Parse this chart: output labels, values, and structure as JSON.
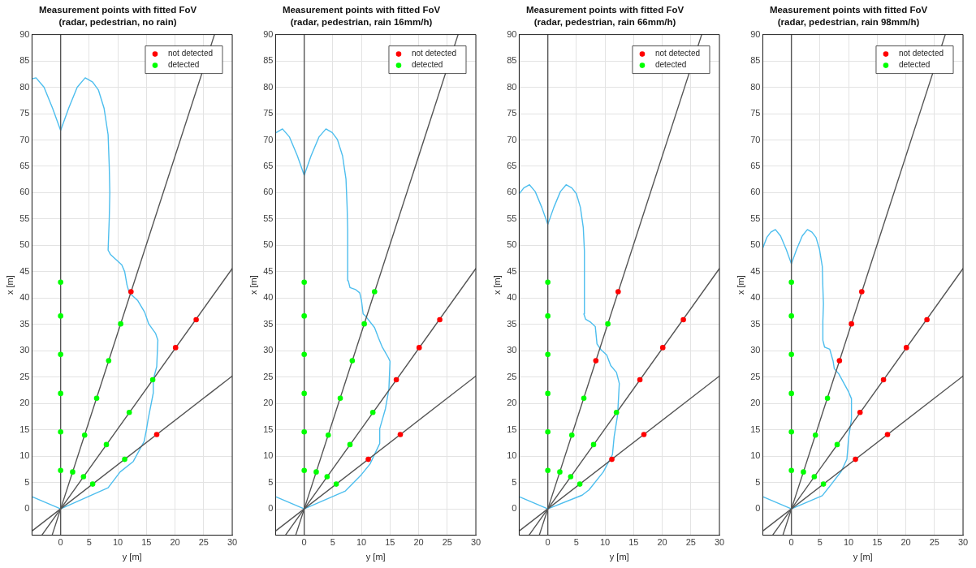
{
  "chart_data": [
    {
      "type": "scatter",
      "title": "Measurement points with fitted FoV",
      "subtitle": "(radar, pedestrian, no rain)",
      "xlabel": "y [m]",
      "ylabel": "x [m]",
      "xlim": [
        -5,
        30
      ],
      "ylim": [
        -5,
        90
      ],
      "xticks": [
        0,
        5,
        10,
        15,
        20,
        25,
        30
      ],
      "yticks": [
        0,
        5,
        10,
        15,
        20,
        25,
        30,
        35,
        40,
        45,
        50,
        55,
        60,
        65,
        70,
        75,
        80,
        85,
        90
      ],
      "grid": true,
      "legend": "top right",
      "marker": "circle",
      "series": [
        {
          "type": "line",
          "color": "#555555",
          "marker": "none",
          "x": [
            0,
            0
          ],
          "values": [
            -5,
            90
          ]
        },
        {
          "type": "line",
          "color": "#555555",
          "marker": "none",
          "x": [
            -1.49,
            26.9
          ],
          "values": [
            -5,
            90
          ]
        },
        {
          "type": "line",
          "color": "#555555",
          "marker": "none",
          "x": [
            -3.29,
            30
          ],
          "values": [
            -5,
            45.6
          ]
        },
        {
          "type": "line",
          "color": "#555555",
          "marker": "none",
          "x": [
            -5,
            30
          ],
          "values": [
            -4.2,
            25.2
          ]
        },
        {
          "type": "line",
          "color": "#4dbeee",
          "marker": "none",
          "x": [
            -5,
            0,
            8.3,
            10.4,
            12.7,
            14.6,
            15,
            15.3,
            16.2,
            16.2,
            16.8,
            17,
            16.6,
            15.4,
            14.7,
            13.5,
            12,
            11.6,
            11.2,
            10.7,
            9.7,
            8.7,
            8.3,
            8.5,
            8.6,
            8.5,
            8.3,
            7.6,
            6.6,
            5.6,
            4.3,
            2.9,
            1.4,
            0,
            -1.4,
            -2.9,
            -4.3,
            -5
          ],
          "values": [
            2.3,
            0,
            4,
            7,
            9,
            12.8,
            15,
            17,
            22,
            24.5,
            27,
            32,
            33.3,
            35.1,
            37.3,
            39.5,
            41,
            42.5,
            45,
            46.3,
            47.3,
            48.3,
            49.1,
            55,
            60,
            65,
            71,
            76,
            79.5,
            81,
            81.8,
            80,
            76,
            71.8,
            76,
            80,
            81.8,
            81.6
          ]
        },
        {
          "name": "not detected",
          "type": "scatter",
          "color": "#ff0000",
          "x": [
            12.3,
            16.8,
            20.1,
            23.7
          ],
          "values": [
            41.2,
            14.1,
            30.6,
            35.9
          ]
        },
        {
          "name": "detected",
          "type": "scatter",
          "color": "#00ff00",
          "x": [
            0,
            0,
            0,
            0,
            0,
            0,
            2.1,
            4.2,
            6.3,
            8.4,
            10.5,
            4.0,
            8.0,
            12.0,
            16.1,
            5.6,
            11.2
          ],
          "values": [
            7.3,
            14.6,
            21.9,
            29.3,
            36.6,
            43.0,
            7.0,
            14.0,
            21.0,
            28.1,
            35.1,
            6.1,
            12.2,
            18.3,
            24.5,
            4.7,
            9.4
          ]
        }
      ]
    },
    {
      "type": "scatter",
      "title": "Measurement points with fitted FoV",
      "subtitle": "(radar, pedestrian, rain 16mm/h)",
      "xlabel": "y [m]",
      "ylabel": "x [m]",
      "xlim": [
        -5,
        30
      ],
      "ylim": [
        -5,
        90
      ],
      "xticks": [
        0,
        5,
        10,
        15,
        20,
        25,
        30
      ],
      "yticks": [
        0,
        5,
        10,
        15,
        20,
        25,
        30,
        35,
        40,
        45,
        50,
        55,
        60,
        65,
        70,
        75,
        80,
        85,
        90
      ],
      "grid": true,
      "legend": "top right",
      "marker": "circle",
      "series": [
        {
          "type": "line",
          "color": "#555555",
          "marker": "none",
          "x": [
            0,
            0
          ],
          "values": [
            -5,
            90
          ]
        },
        {
          "type": "line",
          "color": "#555555",
          "marker": "none",
          "x": [
            -1.49,
            26.9
          ],
          "values": [
            -5,
            90
          ]
        },
        {
          "type": "line",
          "color": "#555555",
          "marker": "none",
          "x": [
            -3.29,
            30
          ],
          "values": [
            -5,
            45.6
          ]
        },
        {
          "type": "line",
          "color": "#555555",
          "marker": "none",
          "x": [
            -5,
            30
          ],
          "values": [
            -4.2,
            25.2
          ]
        },
        {
          "type": "line",
          "color": "#4dbeee",
          "marker": "none",
          "x": [
            -5,
            0,
            7.2,
            10,
            11.5,
            13.2,
            13.2,
            14.2,
            14.8,
            15,
            14.7,
            13.6,
            13,
            12.3,
            10.7,
            10.3,
            10,
            9.7,
            9,
            8,
            7.7,
            7.6,
            7.5,
            7.3,
            6.7,
            5.8,
            4.9,
            3.8,
            2.6,
            1.2,
            0,
            -1.2,
            -2.6,
            -3.8,
            -4.9,
            -5
          ],
          "values": [
            2.3,
            0,
            3.4,
            6.5,
            8.5,
            12.4,
            15.2,
            19,
            22.7,
            28,
            28.7,
            30.8,
            32.4,
            34.4,
            36.6,
            37,
            39.6,
            41,
            41.6,
            42,
            43.3,
            52.9,
            57.3,
            62.6,
            67,
            70.1,
            71.4,
            72.1,
            70.6,
            67,
            63.3,
            67,
            70.6,
            72.1,
            71.4,
            71.3
          ]
        },
        {
          "name": "not detected",
          "type": "scatter",
          "color": "#ff0000",
          "x": [
            16.1,
            20.1,
            23.7,
            11.2,
            16.8
          ],
          "values": [
            24.5,
            30.6,
            35.9,
            9.4,
            14.1
          ]
        },
        {
          "name": "detected",
          "type": "scatter",
          "color": "#00ff00",
          "x": [
            0,
            0,
            0,
            0,
            0,
            0,
            2.1,
            4.2,
            6.3,
            8.4,
            10.5,
            12.3,
            4.0,
            8.0,
            12.0,
            5.6
          ],
          "values": [
            7.3,
            14.6,
            21.9,
            29.3,
            36.6,
            43.0,
            7.0,
            14.0,
            21.0,
            28.1,
            35.1,
            41.2,
            6.1,
            12.2,
            18.3,
            4.7
          ]
        }
      ]
    },
    {
      "type": "scatter",
      "title": "Measurement points with fitted FoV",
      "subtitle": "(radar, pedestrian, rain 66mm/h)",
      "xlabel": "y [m]",
      "ylabel": "x [m]",
      "xlim": [
        -5,
        30
      ],
      "ylim": [
        -5,
        90
      ],
      "xticks": [
        0,
        5,
        10,
        15,
        20,
        25,
        30
      ],
      "yticks": [
        0,
        5,
        10,
        15,
        20,
        25,
        30,
        35,
        40,
        45,
        50,
        55,
        60,
        65,
        70,
        75,
        80,
        85,
        90
      ],
      "grid": true,
      "legend": "top right",
      "marker": "circle",
      "series": [
        {
          "type": "line",
          "color": "#555555",
          "marker": "none",
          "x": [
            0,
            0
          ],
          "values": [
            -5,
            90
          ]
        },
        {
          "type": "line",
          "color": "#555555",
          "marker": "none",
          "x": [
            -1.49,
            26.9
          ],
          "values": [
            -5,
            90
          ]
        },
        {
          "type": "line",
          "color": "#555555",
          "marker": "none",
          "x": [
            -3.29,
            30
          ],
          "values": [
            -5,
            45.6
          ]
        },
        {
          "type": "line",
          "color": "#555555",
          "marker": "none",
          "x": [
            -5,
            30
          ],
          "values": [
            -4.2,
            25.2
          ]
        },
        {
          "type": "line",
          "color": "#4dbeee",
          "marker": "none",
          "x": [
            -5,
            0,
            6,
            7.2,
            9.7,
            11.3,
            11.6,
            12.2,
            12.5,
            12,
            11,
            10.3,
            9.3,
            8.6,
            8.3,
            7.5,
            6.6,
            6.3,
            6.4,
            6.2,
            5.7,
            5,
            4.2,
            3.2,
            2.2,
            1.05,
            0,
            -1.05,
            -2.2,
            -3.2,
            -4.2,
            -5
          ],
          "values": [
            2.3,
            0,
            2.6,
            3.6,
            7,
            10.3,
            13.7,
            17.8,
            23.8,
            25.9,
            27.2,
            29.2,
            30.2,
            31.3,
            34.6,
            35.4,
            36,
            37,
            48.9,
            53.4,
            57.2,
            59.8,
            60.9,
            61.5,
            60.2,
            57.2,
            54,
            57.2,
            60.2,
            61.5,
            60.9,
            59.8
          ]
        },
        {
          "name": "not detected",
          "type": "scatter",
          "color": "#ff0000",
          "x": [
            8.4,
            12.3,
            16.1,
            20.1,
            23.7,
            11.2,
            16.8
          ],
          "values": [
            28.1,
            41.2,
            24.5,
            30.6,
            35.9,
            9.4,
            14.1
          ]
        },
        {
          "name": "detected",
          "type": "scatter",
          "color": "#00ff00",
          "x": [
            0,
            0,
            0,
            0,
            0,
            0,
            2.1,
            4.2,
            6.3,
            10.5,
            4.0,
            8.0,
            12.0,
            5.6
          ],
          "values": [
            7.3,
            14.6,
            21.9,
            29.3,
            36.6,
            43.0,
            7.0,
            14.0,
            21.0,
            35.1,
            6.1,
            12.2,
            18.3,
            4.7
          ]
        }
      ]
    },
    {
      "type": "scatter",
      "title": "Measurement points with fitted FoV",
      "subtitle": "(radar, pedestrian, rain 98mm/h)",
      "xlabel": "y [m]",
      "ylabel": "x [m]",
      "xlim": [
        -5,
        30
      ],
      "ylim": [
        -5,
        90
      ],
      "xticks": [
        0,
        5,
        10,
        15,
        20,
        25,
        30
      ],
      "yticks": [
        0,
        5,
        10,
        15,
        20,
        25,
        30,
        35,
        40,
        45,
        50,
        55,
        60,
        65,
        70,
        75,
        80,
        85,
        90
      ],
      "grid": true,
      "legend": "top right",
      "marker": "circle",
      "series": [
        {
          "type": "line",
          "color": "#555555",
          "marker": "none",
          "x": [
            0,
            0
          ],
          "values": [
            -5,
            90
          ]
        },
        {
          "type": "line",
          "color": "#555555",
          "marker": "none",
          "x": [
            -1.49,
            26.9
          ],
          "values": [
            -5,
            90
          ]
        },
        {
          "type": "line",
          "color": "#555555",
          "marker": "none",
          "x": [
            -3.29,
            30
          ],
          "values": [
            -5,
            45.6
          ]
        },
        {
          "type": "line",
          "color": "#555555",
          "marker": "none",
          "x": [
            -5,
            30
          ],
          "values": [
            -4.2,
            25.2
          ]
        },
        {
          "type": "line",
          "color": "#4dbeee",
          "marker": "none",
          "x": [
            -5,
            0,
            5.4,
            7,
            8.7,
            9.7,
            10,
            10.5,
            10.5,
            10,
            9.3,
            8.3,
            7.5,
            7.3,
            6.7,
            5.8,
            5.5,
            5.5,
            5.6,
            5.5,
            5.4,
            4.9,
            4.3,
            3.6,
            2.8,
            1.9,
            0.9,
            0,
            -0.9,
            -1.9,
            -2.8,
            -3.6,
            -4.3,
            -5
          ],
          "values": [
            2.3,
            0,
            2.5,
            4.7,
            7.1,
            9.4,
            13.5,
            17,
            20.9,
            22.2,
            23.6,
            25.6,
            26.6,
            28,
            30.3,
            30.7,
            32,
            35.6,
            38.9,
            42,
            46,
            49.3,
            51.5,
            52.5,
            53,
            51.8,
            49.2,
            46.5,
            49.2,
            51.8,
            53,
            52.5,
            51.5,
            49.5
          ]
        },
        {
          "name": "not detected",
          "type": "scatter",
          "color": "#ff0000",
          "x": [
            8.4,
            10.5,
            12.3,
            12.0,
            16.1,
            20.1,
            23.7,
            11.2,
            16.8
          ],
          "values": [
            28.1,
            35.1,
            41.2,
            18.3,
            24.5,
            30.6,
            35.9,
            9.4,
            14.1
          ]
        },
        {
          "name": "detected",
          "type": "scatter",
          "color": "#00ff00",
          "x": [
            0,
            0,
            0,
            0,
            0,
            0,
            2.1,
            4.2,
            6.3,
            4.0,
            8.0,
            5.6
          ],
          "values": [
            7.3,
            14.6,
            21.9,
            29.3,
            36.6,
            43.0,
            7.0,
            14.0,
            21.0,
            6.1,
            12.2,
            4.7
          ]
        }
      ]
    }
  ]
}
